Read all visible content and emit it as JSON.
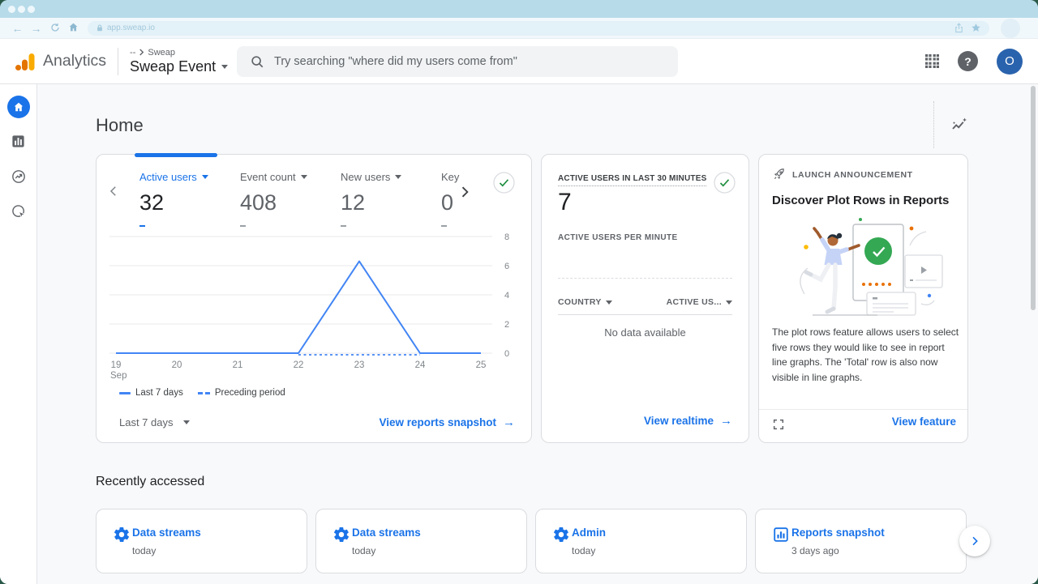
{
  "browser": {
    "url": "app.sweap.io"
  },
  "header": {
    "brand": "Analytics",
    "breadcrumb_org": "--",
    "breadcrumb_property": "Sweap",
    "property_selector": "Sweap Event",
    "search_placeholder": "Try searching \"where did my users come from\"",
    "avatar_initial": "O",
    "help_glyph": "?"
  },
  "page": {
    "title": "Home"
  },
  "overview_card": {
    "metrics": [
      {
        "label": "Active users",
        "value": "32",
        "active": true
      },
      {
        "label": "Event count",
        "value": "408"
      },
      {
        "label": "New users",
        "value": "12"
      },
      {
        "label": "Key",
        "value": "0",
        "caret": false
      }
    ],
    "legend": [
      {
        "label": "Last 7 days",
        "style": "solid"
      },
      {
        "label": "Preceding period",
        "style": "dashed"
      }
    ],
    "range_label": "Last 7 days",
    "link": "View reports snapshot"
  },
  "chart_data": {
    "type": "line",
    "title": "Active users over last 7 days",
    "x": [
      "19",
      "20",
      "21",
      "22",
      "23",
      "24",
      "25"
    ],
    "x_month_label": "Sep",
    "series": [
      {
        "name": "Last 7 days",
        "style": "solid",
        "values": [
          0,
          0,
          0,
          0,
          6.3,
          0,
          0
        ]
      },
      {
        "name": "Preceding period",
        "style": "dashed",
        "values": [
          null,
          null,
          null,
          0,
          0,
          0,
          null
        ]
      }
    ],
    "yticks": [
      0,
      2,
      4,
      6,
      8
    ],
    "ylim": [
      0,
      8
    ],
    "grid": true,
    "legend_position": "bottom",
    "line_color": "#4285f4"
  },
  "realtime_card": {
    "title": "ACTIVE USERS IN LAST 30 MINUTES",
    "value": "7",
    "subtitle": "ACTIVE USERS PER MINUTE",
    "columns": [
      "COUNTRY",
      "ACTIVE US..."
    ],
    "empty_message": "No data available",
    "link": "View realtime"
  },
  "announcement_card": {
    "tag": "LAUNCH ANNOUNCEMENT",
    "title": "Discover Plot Rows in Reports",
    "body": "The plot rows feature allows users to select five rows they would like to see in report line graphs. The 'Total' row is also now visible in line graphs.",
    "link": "View feature"
  },
  "recent": {
    "title": "Recently accessed",
    "items": [
      {
        "icon": "gear",
        "label": "Data streams",
        "time": "today"
      },
      {
        "icon": "gear",
        "label": "Data streams",
        "time": "today"
      },
      {
        "icon": "gear",
        "label": "Admin",
        "time": "today"
      },
      {
        "icon": "bar-chart",
        "label": "Reports snapshot",
        "time": "3 days ago"
      }
    ]
  },
  "colors": {
    "accent_blue": "#1a73e8",
    "chart_blue": "#4285f4",
    "success_green": "#1e8e3e",
    "logo_orange": "#f9ab00",
    "logo_dark_orange": "#e37400"
  }
}
